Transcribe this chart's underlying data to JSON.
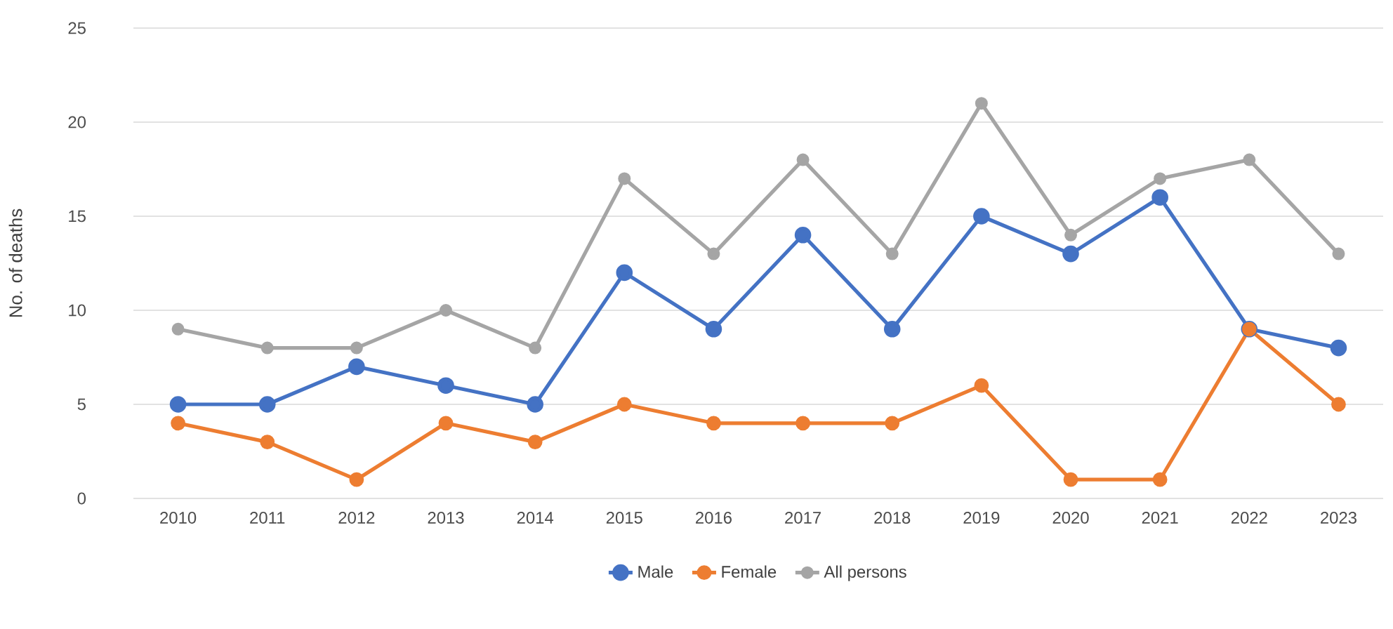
{
  "chart_data": {
    "type": "line",
    "ylabel": "No. of deaths",
    "categories": [
      "2010",
      "2011",
      "2012",
      "2013",
      "2014",
      "2015",
      "2016",
      "2017",
      "2018",
      "2019",
      "2020",
      "2021",
      "2022",
      "2023"
    ],
    "series": [
      {
        "name": "Male",
        "color": "#4472c4",
        "values": [
          5,
          5,
          7,
          6,
          5,
          12,
          9,
          14,
          9,
          15,
          13,
          16,
          9,
          8
        ]
      },
      {
        "name": "Female",
        "color": "#ed7d31",
        "values": [
          4,
          3,
          1,
          4,
          3,
          5,
          4,
          4,
          4,
          6,
          1,
          1,
          9,
          5
        ]
      },
      {
        "name": "All persons",
        "color": "#a5a5a5",
        "values": [
          9,
          8,
          8,
          10,
          8,
          17,
          13,
          18,
          13,
          21,
          14,
          17,
          18,
          13
        ]
      }
    ],
    "ylim": [
      0,
      25
    ],
    "yticks": [
      0,
      5,
      10,
      15,
      20,
      25
    ],
    "grid": "y",
    "legend": "bottom",
    "marker": "circle",
    "line_style": "solid"
  }
}
